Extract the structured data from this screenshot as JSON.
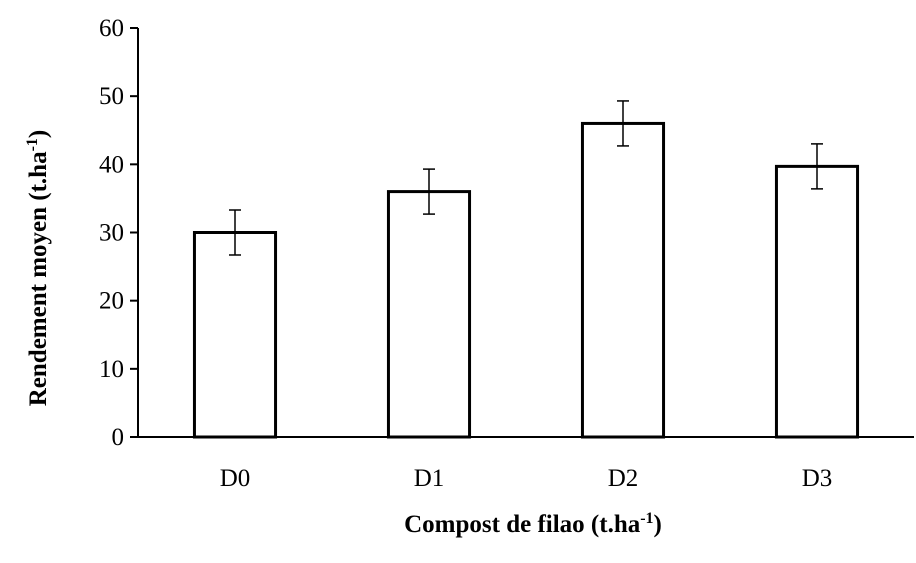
{
  "chart_data": {
    "type": "bar",
    "categories": [
      "D0",
      "D1",
      "D2",
      "D3"
    ],
    "values": [
      30,
      36,
      46,
      39.7
    ],
    "error": [
      3.3,
      3.3,
      3.3,
      3.3
    ],
    "xlabel": {
      "main": "Compost de filao (t.ha",
      "sup": "-1",
      "end": ")"
    },
    "ylabel": {
      "main": "Rendement moyen (t.ha",
      "sup": "-1",
      "end": ")"
    },
    "ylim": [
      0,
      60
    ],
    "yticks": [
      0,
      10,
      20,
      30,
      40,
      50,
      60
    ],
    "grid": false,
    "bar_fill": "#ffffff",
    "bar_stroke": "#000000"
  }
}
